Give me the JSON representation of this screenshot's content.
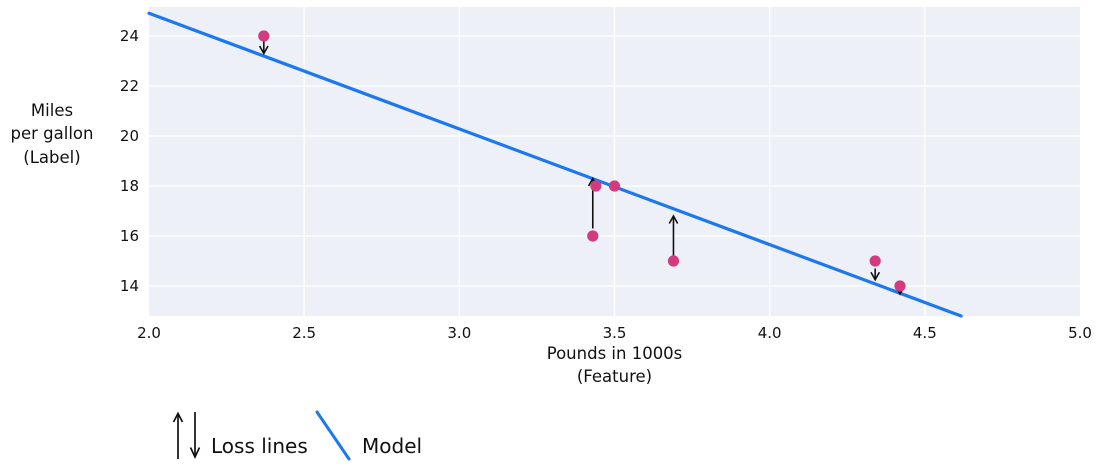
{
  "figure": {
    "ylabel": "Miles\nper gallon\n(Label)",
    "xlabel": "Pounds in 1000s\n(Feature)"
  },
  "chart_data": {
    "type": "scatter",
    "title": "",
    "xlabel": "Pounds in 1000s (Feature)",
    "ylabel": "Miles per gallon (Label)",
    "xlim": [
      2.0,
      5.0
    ],
    "ylim": [
      12.8,
      25.16
    ],
    "x_tick_values": [
      2.0,
      2.5,
      3.0,
      3.5,
      4.0,
      4.5,
      5.0
    ],
    "x_tick_labels": [
      "2.0",
      "2.5",
      "3.0",
      "3.5",
      "4.0",
      "4.5",
      "5.0"
    ],
    "y_tick_values": [
      14,
      16,
      18,
      20,
      22,
      24
    ],
    "y_tick_labels": [
      "14",
      "16",
      "18",
      "20",
      "22",
      "24"
    ],
    "grid": true,
    "legend_position": "bottom-left",
    "points": [
      {
        "x": 2.37,
        "y": 24
      },
      {
        "x": 3.43,
        "y": 16
      },
      {
        "x": 3.44,
        "y": 18
      },
      {
        "x": 3.5,
        "y": 18
      },
      {
        "x": 3.69,
        "y": 15
      },
      {
        "x": 4.34,
        "y": 15
      },
      {
        "x": 4.42,
        "y": 14
      }
    ],
    "model_line": {
      "x1": 2.0,
      "y1": 24.91,
      "x2": 4.617,
      "y2": 12.8,
      "slope": -4.6,
      "intercept": 34.1
    },
    "loss_arrows": [
      {
        "x": 2.37,
        "from": 23.8,
        "to": 23.3,
        "dir": "down"
      },
      {
        "x": 3.43,
        "from": 16.3,
        "to": 18.3,
        "dir": "up"
      },
      {
        "x": 3.69,
        "from": 15.2,
        "to": 16.8,
        "dir": "up"
      },
      {
        "x": 4.34,
        "from": 14.7,
        "to": 14.25,
        "dir": "down"
      },
      {
        "x": 4.42,
        "from": 13.85,
        "to": 13.68,
        "dir": "down"
      }
    ],
    "legend": [
      {
        "label": "Loss lines",
        "symbol": "arrows"
      },
      {
        "label": "Model",
        "symbol": "line"
      }
    ]
  },
  "colors": {
    "point": "#d23b80",
    "model_line": "#1d78f0",
    "arrow": "#111111",
    "plot_bg": "#edf1f7",
    "grid": "#ffffff",
    "text": "#111111"
  }
}
